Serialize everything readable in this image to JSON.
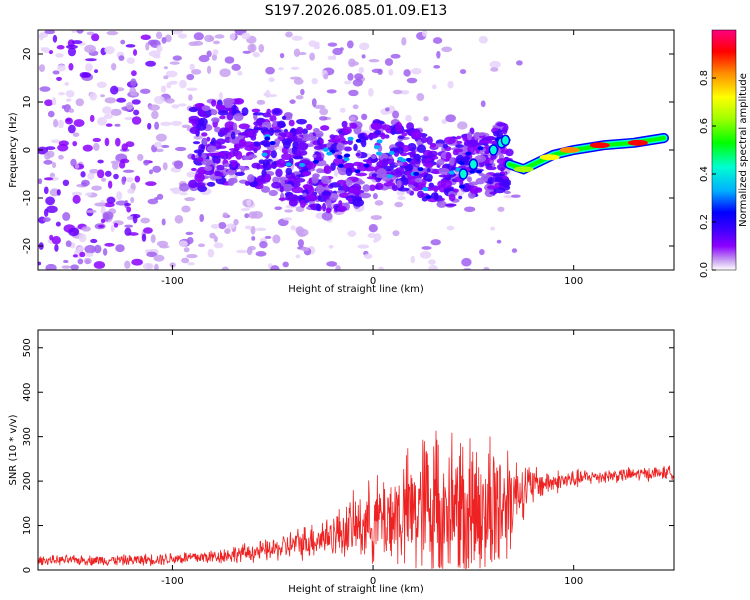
{
  "title": "S197.2026.085.01.09.E13",
  "chart_data": [
    {
      "type": "heatmap",
      "name": "spectrogram",
      "xlabel": "Height of straight line (km)",
      "ylabel": "Frequency (Hz)",
      "xlim": [
        -167,
        150
      ],
      "ylim": [
        -25,
        25
      ],
      "xticks": [
        -100,
        0,
        100
      ],
      "yticks": [
        -20,
        -10,
        0,
        10,
        20
      ],
      "colorbar": {
        "label": "Normalized spectral amplitude",
        "range": [
          0,
          1
        ],
        "ticks": [
          0.0,
          0.2,
          0.4,
          0.6,
          0.8
        ],
        "colormap": [
          "#ffffff",
          "#c8a0f0",
          "#8a00ff",
          "#3c00ff",
          "#0000ff",
          "#00b0ff",
          "#00ffd0",
          "#00ff00",
          "#a0ff00",
          "#ffff00",
          "#ff8c00",
          "#ff0000",
          "#ff0080"
        ]
      },
      "ridge": [
        {
          "x": 0,
          "y": -1
        },
        {
          "x": 20,
          "y": -5
        },
        {
          "x": 30,
          "y": -8
        },
        {
          "x": 40,
          "y": -6
        },
        {
          "x": 50,
          "y": -2
        },
        {
          "x": 60,
          "y": 0
        },
        {
          "x": 66,
          "y": 2
        },
        {
          "x": 68,
          "y": -3
        },
        {
          "x": 75,
          "y": -4
        },
        {
          "x": 90,
          "y": -1
        },
        {
          "x": 100,
          "y": 0
        },
        {
          "x": 115,
          "y": 1
        },
        {
          "x": 130,
          "y": 1.5
        },
        {
          "x": 145,
          "y": 2.5
        }
      ]
    },
    {
      "type": "line",
      "name": "snr",
      "xlabel": "Height of straight line (km)",
      "ylabel": "SNR (10 * v/v)",
      "xlim": [
        -167,
        150
      ],
      "ylim": [
        0,
        540
      ],
      "xticks": [
        -100,
        0,
        100
      ],
      "yticks": [
        0,
        100,
        200,
        300,
        400,
        500
      ],
      "color": "#ee2222",
      "envelope": [
        {
          "x": -167,
          "base": 22,
          "amp": 12
        },
        {
          "x": -120,
          "base": 22,
          "amp": 15
        },
        {
          "x": -80,
          "base": 30,
          "amp": 20
        },
        {
          "x": -50,
          "base": 45,
          "amp": 30
        },
        {
          "x": -20,
          "base": 80,
          "amp": 60
        },
        {
          "x": 0,
          "base": 110,
          "amp": 110
        },
        {
          "x": 20,
          "base": 130,
          "amp": 170
        },
        {
          "x": 30,
          "base": 150,
          "amp": 240
        },
        {
          "x": 40,
          "base": 145,
          "amp": 220
        },
        {
          "x": 55,
          "base": 140,
          "amp": 220
        },
        {
          "x": 65,
          "base": 150,
          "amp": 200
        },
        {
          "x": 72,
          "base": 180,
          "amp": 90
        },
        {
          "x": 85,
          "base": 195,
          "amp": 35
        },
        {
          "x": 110,
          "base": 210,
          "amp": 20
        },
        {
          "x": 150,
          "base": 220,
          "amp": 18
        }
      ]
    }
  ]
}
